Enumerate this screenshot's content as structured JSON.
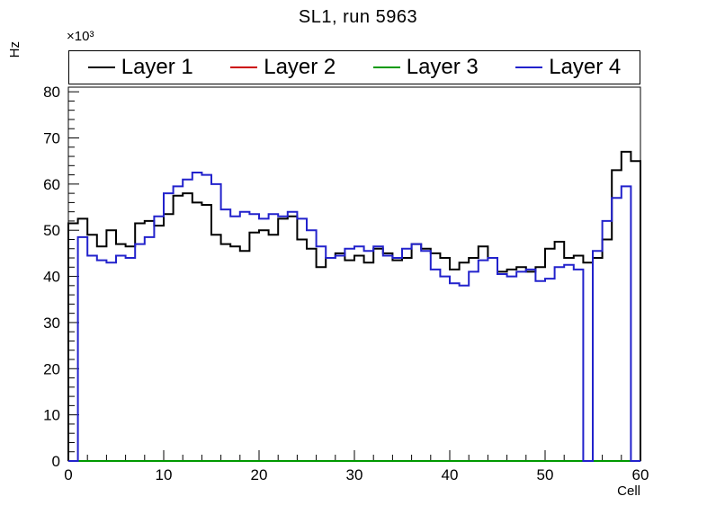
{
  "legend": {
    "items": [
      {
        "label": "Layer 1",
        "color": "#000000"
      },
      {
        "label": "Layer 2",
        "color": "#cc0000"
      },
      {
        "label": "Layer 3",
        "color": "#009900"
      },
      {
        "label": "Layer 4",
        "color": "#2222cc"
      }
    ]
  },
  "chart_data": {
    "type": "line",
    "style": "step-histogram",
    "title": "SL1, run 5963",
    "xlabel": "Cell",
    "ylabel": "Hz",
    "y_axis_multiplier": "×10³",
    "xlim": [
      0,
      60
    ],
    "ylim": [
      0,
      81
    ],
    "xticks": [
      0,
      10,
      20,
      30,
      40,
      50,
      60
    ],
    "yticks": [
      0,
      10,
      20,
      30,
      40,
      50,
      60,
      70,
      80
    ],
    "bin_width": 1,
    "value_units": "×10³ Hz",
    "legend_position": "top",
    "grid": false,
    "series": [
      {
        "name": "Layer 1",
        "color": "#000000",
        "values": [
          51.5,
          52.5,
          49,
          46.5,
          50,
          47,
          46.5,
          51.5,
          52,
          51,
          53.5,
          57.5,
          58,
          56,
          55.5,
          49,
          47,
          46.5,
          45.5,
          49.5,
          50,
          49,
          52.5,
          53,
          48,
          46,
          42,
          44,
          45,
          43.5,
          44.5,
          43,
          46,
          45,
          43.5,
          44,
          47,
          46,
          45,
          44,
          41.5,
          43,
          44,
          46.5,
          44,
          41,
          41.5,
          42,
          41,
          42,
          46,
          47.5,
          44,
          44.5,
          43,
          44,
          48,
          63,
          67,
          65
        ]
      },
      {
        "name": "Layer 2",
        "color": "#cc0000",
        "values": [
          0,
          0,
          0,
          0,
          0,
          0,
          0,
          0,
          0,
          0,
          0,
          0,
          0,
          0,
          0,
          0,
          0,
          0,
          0,
          0,
          0,
          0,
          0,
          0,
          0,
          0,
          0,
          0,
          0,
          0,
          0,
          0,
          0,
          0,
          0,
          0,
          0,
          0,
          0,
          0,
          0,
          0,
          0,
          0,
          0,
          0,
          0,
          0,
          0,
          0,
          0,
          0,
          0,
          0,
          0,
          0,
          0,
          0,
          0,
          0
        ]
      },
      {
        "name": "Layer 3",
        "color": "#009900",
        "values": [
          0,
          0,
          0,
          0,
          0,
          0,
          0,
          0,
          0,
          0,
          0,
          0,
          0,
          0,
          0,
          0,
          0,
          0,
          0,
          0,
          0,
          0,
          0,
          0,
          0,
          0,
          0,
          0,
          0,
          0,
          0,
          0,
          0,
          0,
          0,
          0,
          0,
          0,
          0,
          0,
          0,
          0,
          0,
          0,
          0,
          0,
          0,
          0,
          0,
          0,
          0,
          0,
          0,
          0,
          0,
          0,
          0,
          0,
          0,
          0
        ]
      },
      {
        "name": "Layer 4",
        "color": "#2222cc",
        "values": [
          0,
          48.5,
          44.5,
          43.5,
          43,
          44.5,
          44,
          47,
          48.5,
          53,
          58,
          59.5,
          61,
          62.5,
          62,
          60,
          54.5,
          53,
          54,
          53.5,
          52.5,
          53.5,
          53,
          54,
          52.5,
          50,
          46.5,
          44,
          44.5,
          46,
          46.5,
          45.5,
          46.5,
          44.5,
          44,
          46,
          47,
          45.5,
          41.5,
          40,
          38.5,
          38,
          41,
          43.5,
          44,
          40.5,
          40,
          41,
          41.5,
          39,
          39.5,
          42,
          42.5,
          41.5,
          0,
          45.5,
          52,
          57,
          59.5,
          0
        ]
      }
    ]
  }
}
